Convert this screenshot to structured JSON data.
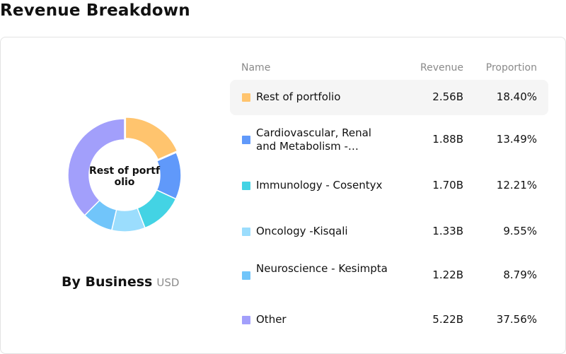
{
  "page": {
    "title": "Revenue Breakdown"
  },
  "table": {
    "headers": {
      "name": "Name",
      "revenue": "Revenue",
      "proportion": "Proportion"
    }
  },
  "donut": {
    "center_label": "Rest of portfolio",
    "caption_title": "By Business",
    "caption_unit": "USD"
  },
  "chart_data": {
    "type": "pie",
    "title": "By Business",
    "unit": "USD",
    "labels": [
      "Rest of portfolio",
      "Cardiovascular, Renal and Metabolism -…",
      "Immunology - Cosentyx",
      "Oncology -Kisqali",
      "Neuroscience - Kesimpta",
      "Other"
    ],
    "values": [
      18.4,
      13.49,
      12.21,
      9.55,
      8.79,
      37.56
    ],
    "revenue": [
      "2.56B",
      "1.88B",
      "1.70B",
      "1.33B",
      "1.22B",
      "5.22B"
    ],
    "proportion": [
      "18.40%",
      "13.49%",
      "12.21%",
      "9.55%",
      "8.79%",
      "37.56%"
    ],
    "colors": [
      "#FFC46E",
      "#6099FA",
      "#43D3E4",
      "#9BDDFD",
      "#71C5FA",
      "#A29FFB"
    ],
    "highlighted": 0
  }
}
